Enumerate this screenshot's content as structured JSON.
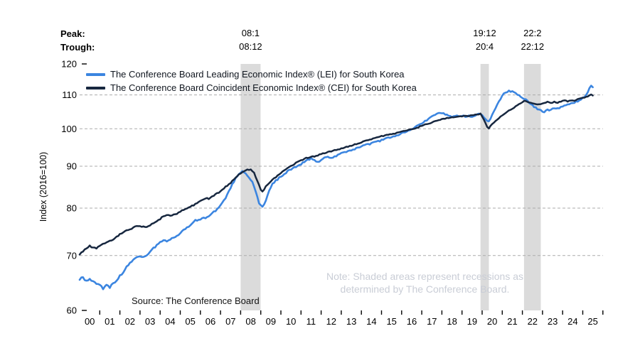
{
  "chart_data": {
    "type": "line",
    "title": "",
    "peak_row_label": "Peak:",
    "trough_row_label": "Trough:",
    "source": "Source: The Conference Board",
    "note_line1": "Note: Shaded areas represent recessions as",
    "note_line2": "determined by The Conference Board.",
    "y_axis": {
      "label": "Index (2016=100)",
      "scale": "log",
      "min": 60,
      "max": 120,
      "ticks": [
        120,
        110,
        100,
        90,
        80,
        70,
        60
      ],
      "gridlines": [
        110,
        100,
        90,
        80,
        70
      ]
    },
    "x_axis": {
      "start_year": 2000,
      "end_year": 2026,
      "labels": [
        "00",
        "01",
        "02",
        "03",
        "04",
        "05",
        "06",
        "07",
        "08",
        "09",
        "10",
        "11",
        "12",
        "13",
        "14",
        "15",
        "16",
        "17",
        "18",
        "19",
        "20",
        "21",
        "22",
        "23",
        "24",
        "25"
      ],
      "grid": false
    },
    "recessions": [
      {
        "peak_label": "08:1",
        "trough_label": "08:12",
        "start": 2008.0,
        "end": 2008.99
      },
      {
        "peak_label": "19:12",
        "trough_label": "20:4",
        "start": 2019.917,
        "end": 2020.333
      },
      {
        "peak_label": "22:2",
        "trough_label": "22:12",
        "start": 2022.083,
        "end": 2022.917
      }
    ],
    "series": [
      {
        "name": "The Conference Board Leading Economic Index® (LEI) for South Korea",
        "color": "#3b85e0",
        "points": [
          [
            2000.0,
            65.4
          ],
          [
            2000.17,
            65.9
          ],
          [
            2000.33,
            65.1
          ],
          [
            2000.5,
            65.7
          ],
          [
            2000.67,
            65.0
          ],
          [
            2000.83,
            64.7
          ],
          [
            2001.0,
            64.3
          ],
          [
            2001.17,
            63.8
          ],
          [
            2001.33,
            64.3
          ],
          [
            2001.5,
            64.1
          ],
          [
            2001.67,
            64.6
          ],
          [
            2001.83,
            65.2
          ],
          [
            2002.0,
            66.1
          ],
          [
            2002.25,
            67.3
          ],
          [
            2002.5,
            68.5
          ],
          [
            2002.75,
            69.4
          ],
          [
            2003.0,
            70.0
          ],
          [
            2003.17,
            69.7
          ],
          [
            2003.33,
            70.2
          ],
          [
            2003.5,
            70.8
          ],
          [
            2003.75,
            71.7
          ],
          [
            2004.0,
            72.6
          ],
          [
            2004.17,
            73.2
          ],
          [
            2004.33,
            72.9
          ],
          [
            2004.5,
            73.3
          ],
          [
            2004.75,
            73.9
          ],
          [
            2005.0,
            74.6
          ],
          [
            2005.25,
            75.5
          ],
          [
            2005.5,
            76.3
          ],
          [
            2005.75,
            77.2
          ],
          [
            2006.0,
            77.6
          ],
          [
            2006.25,
            77.9
          ],
          [
            2006.5,
            78.5
          ],
          [
            2006.75,
            79.4
          ],
          [
            2007.0,
            80.6
          ],
          [
            2007.25,
            82.4
          ],
          [
            2007.5,
            84.7
          ],
          [
            2007.75,
            87.0
          ],
          [
            2008.0,
            88.5
          ],
          [
            2008.08,
            88.7
          ],
          [
            2008.25,
            88.1
          ],
          [
            2008.42,
            87.3
          ],
          [
            2008.58,
            86.0
          ],
          [
            2008.75,
            83.8
          ],
          [
            2008.92,
            81.0
          ],
          [
            2009.08,
            80.2
          ],
          [
            2009.25,
            81.8
          ],
          [
            2009.42,
            84.0
          ],
          [
            2009.58,
            85.7
          ],
          [
            2009.75,
            86.4
          ],
          [
            2010.0,
            87.5
          ],
          [
            2010.25,
            88.4
          ],
          [
            2010.5,
            89.2
          ],
          [
            2010.75,
            89.9
          ],
          [
            2011.0,
            90.6
          ],
          [
            2011.25,
            91.4
          ],
          [
            2011.5,
            91.9
          ],
          [
            2011.83,
            90.9
          ],
          [
            2012.08,
            91.9
          ],
          [
            2012.33,
            92.4
          ],
          [
            2012.58,
            92.2
          ],
          [
            2012.83,
            92.9
          ],
          [
            2013.08,
            93.5
          ],
          [
            2013.33,
            93.9
          ],
          [
            2013.58,
            94.3
          ],
          [
            2013.83,
            94.8
          ],
          [
            2014.08,
            95.3
          ],
          [
            2014.33,
            95.7
          ],
          [
            2014.58,
            96.1
          ],
          [
            2014.83,
            96.5
          ],
          [
            2015.08,
            97.0
          ],
          [
            2015.33,
            97.4
          ],
          [
            2015.58,
            97.8
          ],
          [
            2015.83,
            98.3
          ],
          [
            2016.08,
            98.9
          ],
          [
            2016.33,
            99.5
          ],
          [
            2016.58,
            100.2
          ],
          [
            2016.83,
            100.9
          ],
          [
            2017.08,
            101.8
          ],
          [
            2017.33,
            102.8
          ],
          [
            2017.58,
            103.7
          ],
          [
            2017.83,
            104.4
          ],
          [
            2018.0,
            104.6
          ],
          [
            2018.25,
            104.0
          ],
          [
            2018.5,
            103.3
          ],
          [
            2018.67,
            103.8
          ],
          [
            2018.83,
            103.5
          ],
          [
            2019.0,
            103.8
          ],
          [
            2019.17,
            103.4
          ],
          [
            2019.33,
            103.7
          ],
          [
            2019.5,
            103.5
          ],
          [
            2019.67,
            103.9
          ],
          [
            2019.83,
            104.2
          ],
          [
            2019.92,
            104.3
          ],
          [
            2020.08,
            103.2
          ],
          [
            2020.25,
            102.1
          ],
          [
            2020.33,
            101.9
          ],
          [
            2020.5,
            104.0
          ],
          [
            2020.67,
            106.0
          ],
          [
            2020.83,
            107.8
          ],
          [
            2021.0,
            109.8
          ],
          [
            2021.17,
            110.9
          ],
          [
            2021.33,
            111.2
          ],
          [
            2021.5,
            111.0
          ],
          [
            2021.67,
            110.4
          ],
          [
            2021.83,
            109.8
          ],
          [
            2022.0,
            109.2
          ],
          [
            2022.08,
            108.9
          ],
          [
            2022.25,
            108.1
          ],
          [
            2022.42,
            107.2
          ],
          [
            2022.58,
            106.4
          ],
          [
            2022.75,
            105.8
          ],
          [
            2022.92,
            105.2
          ],
          [
            2023.08,
            104.9
          ],
          [
            2023.25,
            105.6
          ],
          [
            2023.42,
            105.3
          ],
          [
            2023.58,
            106.1
          ],
          [
            2023.75,
            105.8
          ],
          [
            2023.92,
            106.3
          ],
          [
            2024.08,
            106.7
          ],
          [
            2024.25,
            107.1
          ],
          [
            2024.42,
            107.4
          ],
          [
            2024.58,
            107.7
          ],
          [
            2024.75,
            108.1
          ],
          [
            2024.92,
            108.6
          ],
          [
            2025.08,
            109.4
          ],
          [
            2025.25,
            110.8
          ],
          [
            2025.33,
            111.9
          ],
          [
            2025.42,
            113.1
          ],
          [
            2025.5,
            112.4
          ]
        ]
      },
      {
        "name": "The Conference Board Coincident Economic Index® (CEI) for South Korea",
        "color": "#17273f",
        "points": [
          [
            2000.0,
            70.2
          ],
          [
            2000.17,
            70.9
          ],
          [
            2000.33,
            71.5
          ],
          [
            2000.5,
            71.9
          ],
          [
            2000.67,
            71.6
          ],
          [
            2000.83,
            71.5
          ],
          [
            2001.0,
            72.0
          ],
          [
            2001.25,
            72.5
          ],
          [
            2001.5,
            72.9
          ],
          [
            2001.75,
            73.5
          ],
          [
            2002.0,
            74.3
          ],
          [
            2002.25,
            74.9
          ],
          [
            2002.5,
            75.4
          ],
          [
            2002.75,
            75.9
          ],
          [
            2003.0,
            76.1
          ],
          [
            2003.25,
            75.8
          ],
          [
            2003.5,
            76.2
          ],
          [
            2003.75,
            76.9
          ],
          [
            2004.0,
            77.6
          ],
          [
            2004.17,
            78.2
          ],
          [
            2004.33,
            78.5
          ],
          [
            2004.5,
            78.2
          ],
          [
            2004.75,
            78.6
          ],
          [
            2005.0,
            79.2
          ],
          [
            2005.25,
            79.8
          ],
          [
            2005.5,
            80.3
          ],
          [
            2005.75,
            80.9
          ],
          [
            2006.0,
            81.6
          ],
          [
            2006.25,
            82.3
          ],
          [
            2006.42,
            82.1
          ],
          [
            2006.58,
            82.6
          ],
          [
            2006.75,
            83.1
          ],
          [
            2007.0,
            83.9
          ],
          [
            2007.25,
            84.9
          ],
          [
            2007.5,
            85.9
          ],
          [
            2007.75,
            87.1
          ],
          [
            2008.0,
            88.3
          ],
          [
            2008.17,
            88.8
          ],
          [
            2008.33,
            89.1
          ],
          [
            2008.5,
            89.2
          ],
          [
            2008.67,
            88.4
          ],
          [
            2008.83,
            86.3
          ],
          [
            2009.0,
            84.3
          ],
          [
            2009.08,
            83.7
          ],
          [
            2009.25,
            85.0
          ],
          [
            2009.5,
            86.3
          ],
          [
            2009.75,
            87.3
          ],
          [
            2010.0,
            88.3
          ],
          [
            2010.25,
            89.2
          ],
          [
            2010.5,
            90.0
          ],
          [
            2010.75,
            90.8
          ],
          [
            2011.0,
            91.5
          ],
          [
            2011.25,
            92.1
          ],
          [
            2011.5,
            92.4
          ],
          [
            2011.75,
            92.6
          ],
          [
            2012.0,
            93.1
          ],
          [
            2012.25,
            93.5
          ],
          [
            2012.5,
            93.9
          ],
          [
            2012.75,
            94.2
          ],
          [
            2013.0,
            94.6
          ],
          [
            2013.25,
            95.0
          ],
          [
            2013.5,
            95.4
          ],
          [
            2013.75,
            95.8
          ],
          [
            2014.0,
            96.3
          ],
          [
            2014.25,
            96.7
          ],
          [
            2014.5,
            97.1
          ],
          [
            2014.75,
            97.5
          ],
          [
            2015.0,
            97.9
          ],
          [
            2015.25,
            98.2
          ],
          [
            2015.5,
            98.5
          ],
          [
            2015.75,
            98.8
          ],
          [
            2016.0,
            99.2
          ],
          [
            2016.25,
            99.5
          ],
          [
            2016.5,
            99.9
          ],
          [
            2016.75,
            100.3
          ],
          [
            2017.0,
            100.8
          ],
          [
            2017.25,
            101.3
          ],
          [
            2017.5,
            101.8
          ],
          [
            2017.75,
            102.3
          ],
          [
            2018.0,
            102.7
          ],
          [
            2018.25,
            103.0
          ],
          [
            2018.5,
            103.3
          ],
          [
            2018.75,
            103.5
          ],
          [
            2019.0,
            103.6
          ],
          [
            2019.17,
            103.8
          ],
          [
            2019.33,
            103.6
          ],
          [
            2019.5,
            103.9
          ],
          [
            2019.67,
            104.0
          ],
          [
            2019.83,
            104.2
          ],
          [
            2019.92,
            104.4
          ],
          [
            2020.08,
            102.6
          ],
          [
            2020.25,
            100.6
          ],
          [
            2020.33,
            100.0
          ],
          [
            2020.5,
            101.4
          ],
          [
            2020.67,
            102.3
          ],
          [
            2020.83,
            103.1
          ],
          [
            2021.0,
            103.9
          ],
          [
            2021.17,
            104.6
          ],
          [
            2021.33,
            105.2
          ],
          [
            2021.5,
            105.8
          ],
          [
            2021.67,
            106.5
          ],
          [
            2021.83,
            107.2
          ],
          [
            2022.0,
            107.8
          ],
          [
            2022.08,
            108.2
          ],
          [
            2022.25,
            107.9
          ],
          [
            2022.42,
            107.6
          ],
          [
            2022.58,
            107.4
          ],
          [
            2022.75,
            107.2
          ],
          [
            2022.92,
            107.1
          ],
          [
            2023.08,
            107.4
          ],
          [
            2023.25,
            107.8
          ],
          [
            2023.42,
            107.4
          ],
          [
            2023.58,
            107.9
          ],
          [
            2023.75,
            107.6
          ],
          [
            2023.92,
            108.0
          ],
          [
            2024.08,
            108.3
          ],
          [
            2024.25,
            108.0
          ],
          [
            2024.42,
            108.4
          ],
          [
            2024.58,
            108.2
          ],
          [
            2024.75,
            108.6
          ],
          [
            2024.92,
            108.9
          ],
          [
            2025.08,
            109.2
          ],
          [
            2025.25,
            109.6
          ],
          [
            2025.42,
            110.1
          ],
          [
            2025.5,
            109.8
          ]
        ]
      }
    ],
    "style": {
      "recession_band_color": "#dbdbdb",
      "gridline_color": "#ababab",
      "axis_text_color": "#000000",
      "note_color": "#c9cdd6"
    }
  }
}
